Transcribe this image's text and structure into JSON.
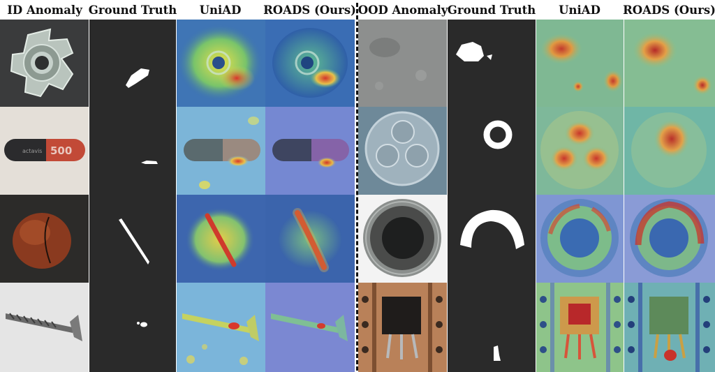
{
  "headers": {
    "id_anomaly": "ID Anomaly",
    "ground_truth_left": "Ground Truth",
    "uniad_left": "UniAD",
    "roads_left": "ROADS (Ours)",
    "ood_anomaly": "OOD Anomaly",
    "ground_truth_right": "Ground Truth",
    "uniad_right": "UniAD",
    "roads_right": "ROADS (Ours)"
  },
  "capsule_label": "500",
  "capsule_brand": "actavis",
  "rows": [
    {
      "id_object": "metal-nut",
      "ood_object": "carpet-texture"
    },
    {
      "id_object": "capsule",
      "ood_object": "cable"
    },
    {
      "id_object": "hazelnut",
      "ood_object": "bottle"
    },
    {
      "id_object": "screw",
      "ood_object": "transistor"
    }
  ]
}
